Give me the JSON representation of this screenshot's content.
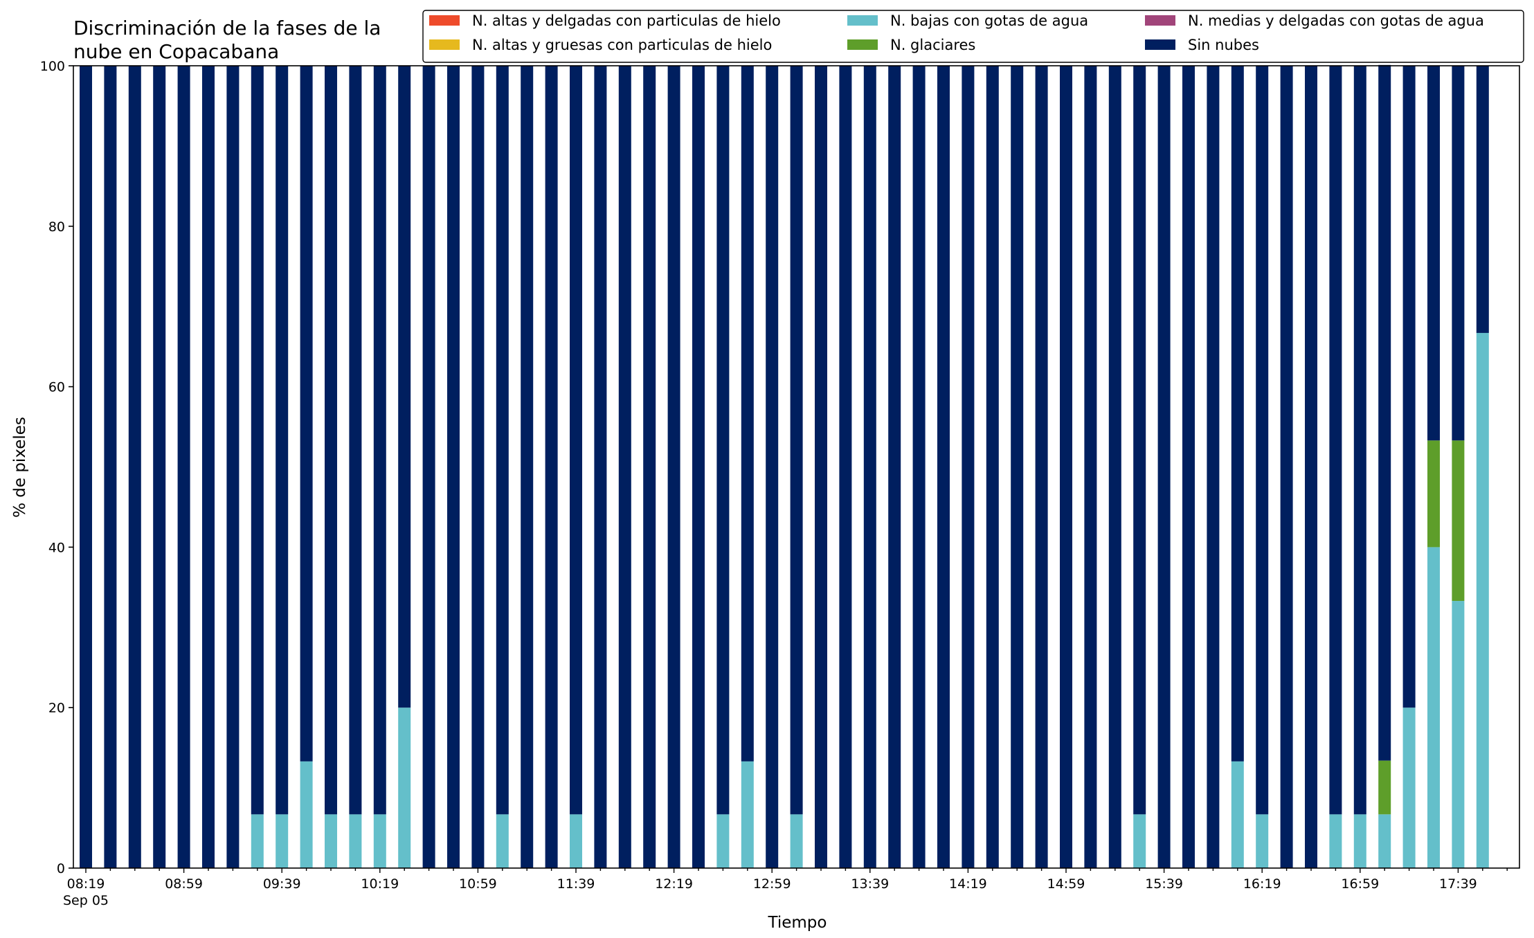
{
  "chart_data": {
    "type": "bar",
    "stacked": true,
    "title_lines": [
      "Discriminación de la fases de la",
      "nube en Copacabana"
    ],
    "xlabel": "Tiempo",
    "ylabel": "% de pixeles",
    "ylim": [
      0,
      100
    ],
    "yticks": [
      0,
      20,
      40,
      60,
      80,
      100
    ],
    "grid": false,
    "legend_position": "top-right",
    "x_first_tick_sublabel": "Sep 05",
    "categories": [
      "08:19",
      "08:29",
      "08:39",
      "08:49",
      "08:59",
      "09:09",
      "09:19",
      "09:29",
      "09:39",
      "09:49",
      "09:59",
      "10:09",
      "10:19",
      "10:29",
      "10:39",
      "10:49",
      "10:59",
      "11:09",
      "11:19",
      "11:29",
      "11:39",
      "11:49",
      "11:59",
      "12:09",
      "12:19",
      "12:29",
      "12:39",
      "12:49",
      "12:59",
      "13:09",
      "13:19",
      "13:29",
      "13:39",
      "13:49",
      "13:59",
      "14:09",
      "14:19",
      "14:29",
      "14:39",
      "14:49",
      "14:59",
      "15:09",
      "15:19",
      "15:29",
      "15:39",
      "15:49",
      "15:59",
      "16:09",
      "16:19",
      "16:29",
      "16:39",
      "16:49",
      "16:59",
      "17:09",
      "17:19",
      "17:29",
      "17:39",
      "17:49"
    ],
    "tick_labels": [
      "08:19",
      "08:59",
      "09:39",
      "10:19",
      "10:59",
      "11:39",
      "12:19",
      "12:59",
      "13:39",
      "14:19",
      "14:59",
      "15:39",
      "16:19",
      "16:59",
      "17:39"
    ],
    "legend_columns": 3,
    "series": [
      {
        "name": "N. altas y delgadas con particulas de hielo",
        "color": "#ee4b2b",
        "values": [
          0,
          0,
          0,
          0,
          0,
          0,
          0,
          0,
          0,
          0,
          0,
          0,
          0,
          0,
          0,
          0,
          0,
          0,
          0,
          0,
          0,
          0,
          0,
          0,
          0,
          0,
          0,
          0,
          0,
          0,
          0,
          0,
          0,
          0,
          0,
          0,
          0,
          0,
          0,
          0,
          0,
          0,
          0,
          0,
          0,
          0,
          0,
          0,
          0,
          0,
          0,
          0,
          0,
          0,
          0,
          0,
          0,
          0
        ]
      },
      {
        "name": "N. altas y gruesas con particulas de hielo",
        "color": "#e6b91e",
        "values": [
          0,
          0,
          0,
          0,
          0,
          0,
          0,
          0,
          0,
          0,
          0,
          0,
          0,
          0,
          0,
          0,
          0,
          0,
          0,
          0,
          0,
          0,
          0,
          0,
          0,
          0,
          0,
          0,
          0,
          0,
          0,
          0,
          0,
          0,
          0,
          0,
          0,
          0,
          0,
          0,
          0,
          0,
          0,
          0,
          0,
          0,
          0,
          0,
          0,
          0,
          0,
          0,
          0,
          0,
          0,
          0,
          0,
          0
        ]
      },
      {
        "name": "N. bajas con gotas de agua",
        "color": "#64bfca",
        "values": [
          0,
          0,
          0,
          0,
          0,
          0,
          0,
          6.7,
          6.7,
          13.3,
          6.7,
          6.7,
          6.7,
          20,
          0,
          0,
          0,
          6.7,
          0,
          0,
          6.7,
          0,
          0,
          0,
          0,
          0,
          6.7,
          13.3,
          0,
          6.7,
          0,
          0,
          0,
          0,
          0,
          0,
          0,
          0,
          0,
          0,
          0,
          0,
          0,
          6.7,
          0,
          0,
          0,
          13.3,
          6.7,
          0,
          0,
          6.7,
          6.7,
          6.7,
          20,
          40,
          33.3,
          66.7
        ]
      },
      {
        "name": "N. glaciares",
        "color": "#5e9e2a",
        "values": [
          0,
          0,
          0,
          0,
          0,
          0,
          0,
          0,
          0,
          0,
          0,
          0,
          0,
          0,
          0,
          0,
          0,
          0,
          0,
          0,
          0,
          0,
          0,
          0,
          0,
          0,
          0,
          0,
          0,
          0,
          0,
          0,
          0,
          0,
          0,
          0,
          0,
          0,
          0,
          0,
          0,
          0,
          0,
          0,
          0,
          0,
          0,
          0,
          0,
          0,
          0,
          0,
          0,
          6.7,
          0,
          13.3,
          20,
          0
        ]
      },
      {
        "name": "N. medias y delgadas con gotas de agua",
        "color": "#a1457a",
        "values": [
          0,
          0,
          0,
          0,
          0,
          0,
          0,
          0,
          0,
          0,
          0,
          0,
          0,
          0,
          0,
          0,
          0,
          0,
          0,
          0,
          0,
          0,
          0,
          0,
          0,
          0,
          0,
          0,
          0,
          0,
          0,
          0,
          0,
          0,
          0,
          0,
          0,
          0,
          0,
          0,
          0,
          0,
          0,
          0,
          0,
          0,
          0,
          0,
          0,
          0,
          0,
          0,
          0,
          0,
          0,
          0,
          0,
          0
        ]
      },
      {
        "name": "Sin nubes",
        "color": "#001f5f",
        "values": [
          100,
          100,
          100,
          100,
          100,
          100,
          100,
          93.3,
          93.3,
          86.7,
          93.3,
          93.3,
          93.3,
          80,
          100,
          100,
          100,
          93.3,
          100,
          100,
          93.3,
          100,
          100,
          100,
          100,
          100,
          93.3,
          86.7,
          100,
          93.3,
          100,
          100,
          100,
          100,
          100,
          100,
          100,
          100,
          100,
          100,
          100,
          100,
          100,
          93.3,
          100,
          100,
          100,
          86.7,
          93.3,
          100,
          100,
          93.3,
          93.3,
          86.7,
          80,
          46.7,
          46.7,
          33.3
        ]
      }
    ]
  }
}
